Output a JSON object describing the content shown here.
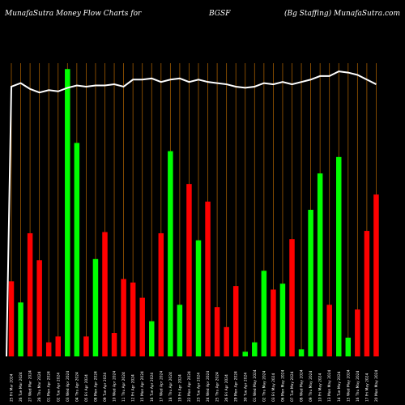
{
  "header": {
    "left": "MunafaSutra  Money Flow  Charts for",
    "center": "BGSF",
    "right": "(Bg Staffing) MunafaSutra.com"
  },
  "chart_data": {
    "type": "bar",
    "title": "Money Flow Chart",
    "colors": {
      "up": "#00ff00",
      "down": "#ff0000",
      "line": "#ffffff",
      "grid": "#a05a00",
      "background": "#000000"
    },
    "categories": [
      "25 Fri Mar 2024",
      "26 Tue Mar 2024",
      "27 Wed Mar 2024",
      "28 Thu Mar 2024",
      "01 Mon Apr 2024",
      "02 Tue Apr 2024",
      "03 Wed Apr 2024",
      "04 Thu Apr 2024",
      "05 Fri Apr 2024",
      "08 Mon Apr 2024",
      "09 Tue Apr 2024",
      "10 Wed Apr 2024",
      "11 Thu Apr 2024",
      "12 Fri Apr 2024",
      "15 Mon Apr 2024",
      "16 Tue Apr 2024",
      "17 Wed Apr 2024",
      "18 Thu Apr 2024",
      "19 Fri Apr 2024",
      "22 Mon Apr 2024",
      "23 Tue Apr 2024",
      "24 Wed Apr 2024",
      "25 Thu Apr 2024",
      "26 Fri Apr 2024",
      "29 Mon Apr 2024",
      "30 Tue Apr 2024",
      "01 Wed May 2024",
      "02 Thu May 2024",
      "03 Fri May 2024",
      "06 Mon May 2024",
      "07 Tue May 2024",
      "08 Wed May 2024",
      "09 Thu May 2024",
      "10 Fri May 2024",
      "13 Mon May 2024",
      "14 Tue May 2024",
      "15 Wed May 2024",
      "16 Thu May 2024",
      "17 Fri May 2024",
      "20 Mon May 2024"
    ],
    "money_flow": {
      "values": [
        64,
        46,
        105,
        82,
        12,
        17,
        245,
        182,
        17,
        83,
        106,
        20,
        66,
        63,
        50,
        30,
        105,
        175,
        44,
        147,
        99,
        132,
        42,
        25,
        60,
        4,
        12,
        73,
        57,
        62,
        100,
        6,
        125,
        156,
        44,
        170,
        16,
        40,
        107,
        138
      ],
      "direction": [
        "down",
        "up",
        "down",
        "down",
        "down",
        "down",
        "up",
        "up",
        "down",
        "up",
        "down",
        "down",
        "down",
        "down",
        "down",
        "up",
        "down",
        "up",
        "up",
        "down",
        "up",
        "down",
        "down",
        "down",
        "down",
        "up",
        "up",
        "up",
        "down",
        "up",
        "down",
        "up",
        "up",
        "up",
        "down",
        "up",
        "up",
        "down",
        "down",
        "down"
      ]
    },
    "price_line": {
      "values": [
        230,
        233,
        228,
        225,
        227,
        226,
        229,
        231,
        230,
        231,
        231,
        232,
        230,
        236,
        236,
        237,
        234,
        236,
        237,
        234,
        236,
        234,
        233,
        232,
        230,
        229,
        230,
        233,
        232,
        234,
        232,
        234,
        236,
        239,
        239,
        243,
        242,
        240,
        236,
        232
      ]
    },
    "ylim": [
      0,
      250
    ],
    "grid": true
  }
}
